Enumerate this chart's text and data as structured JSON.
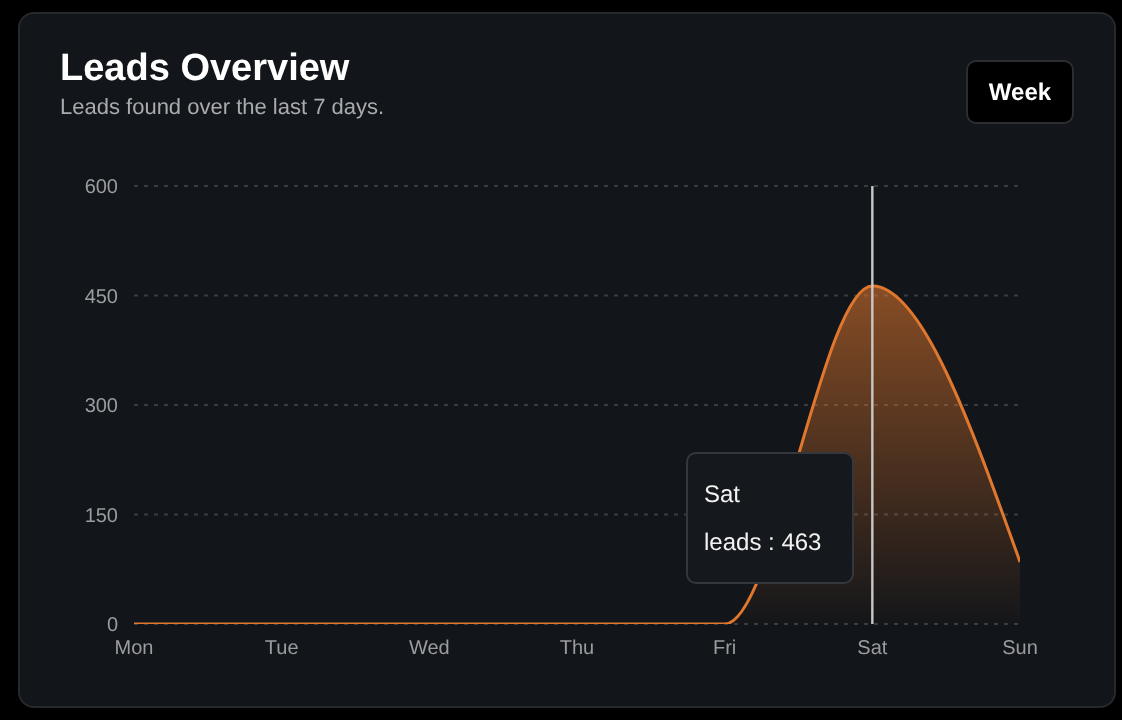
{
  "chart_data": {
    "type": "area",
    "title": "Leads Overview",
    "subtitle": "Leads found over the last 7 days.",
    "categories": [
      "Mon",
      "Tue",
      "Wed",
      "Thu",
      "Fri",
      "Sat",
      "Sun"
    ],
    "series": [
      {
        "color": "#e0772e",
        "values": [
          0,
          0,
          0,
          0,
          0,
          463,
          85
        ]
      }
    ],
    "ylim": [
      0,
      600
    ],
    "yticks": [
      0,
      150,
      300,
      450,
      600
    ],
    "grid": "y",
    "ref_lines": [
      {
        "axis": "x",
        "value": "Sat",
        "color": "#c8c8c8"
      }
    ],
    "annotations": [
      "Week",
      "Sat\nleads : 463"
    ]
  }
}
